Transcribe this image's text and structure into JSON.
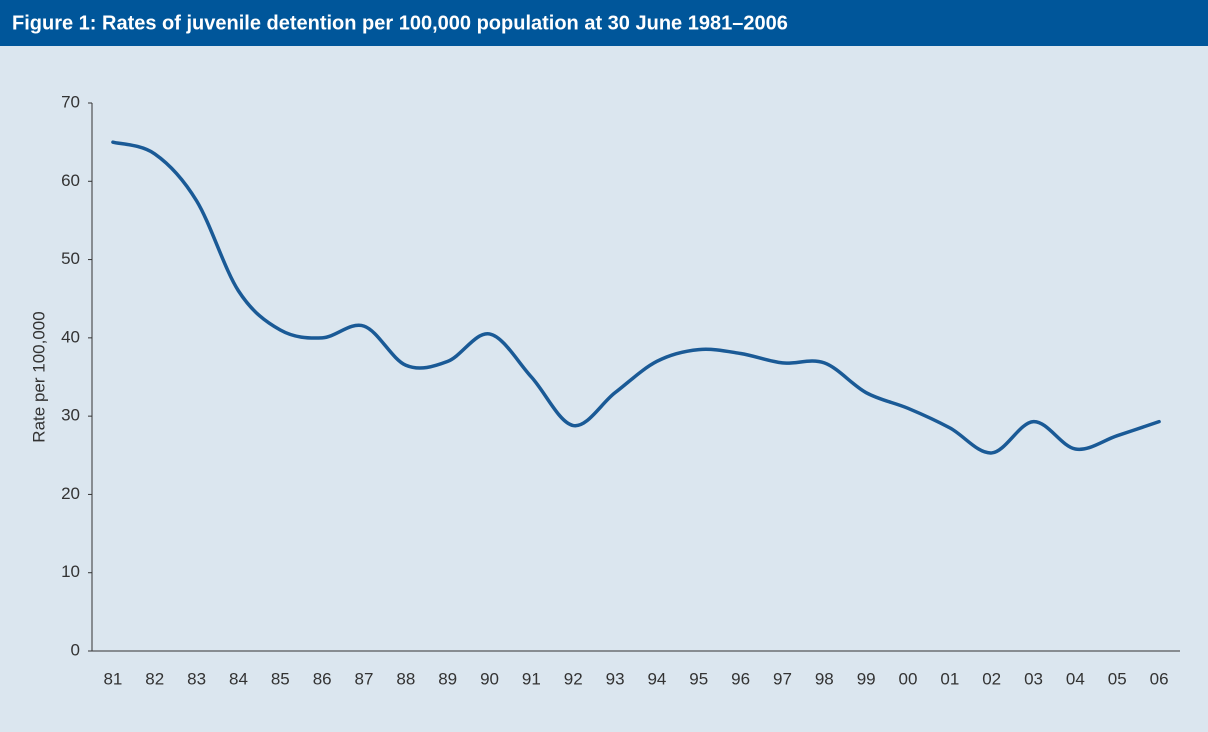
{
  "chart_data": {
    "type": "line",
    "title": "Figure 1: Rates of juvenile detention per 100,000 population at 30 June 1981–2006",
    "y_label": "Rate per 100,000",
    "categories": [
      "81",
      "82",
      "83",
      "84",
      "85",
      "86",
      "87",
      "88",
      "89",
      "90",
      "91",
      "92",
      "93",
      "94",
      "95",
      "96",
      "97",
      "98",
      "99",
      "00",
      "01",
      "02",
      "03",
      "04",
      "05",
      "06"
    ],
    "series": [
      {
        "name": "Rate",
        "color": "#1a5a96",
        "values": [
          65,
          63.5,
          57.5,
          46,
          41,
          40,
          41.5,
          36.5,
          37,
          40.5,
          35,
          28.8,
          33,
          37,
          38.5,
          38,
          36.8,
          36.8,
          33,
          31,
          28.5,
          25.3,
          29.3,
          25.8,
          27.5,
          29.3
        ]
      }
    ],
    "ylim": [
      0,
      70
    ],
    "yticks": [
      0,
      10,
      20,
      30,
      40,
      50,
      60,
      70
    ],
    "grid": false
  }
}
